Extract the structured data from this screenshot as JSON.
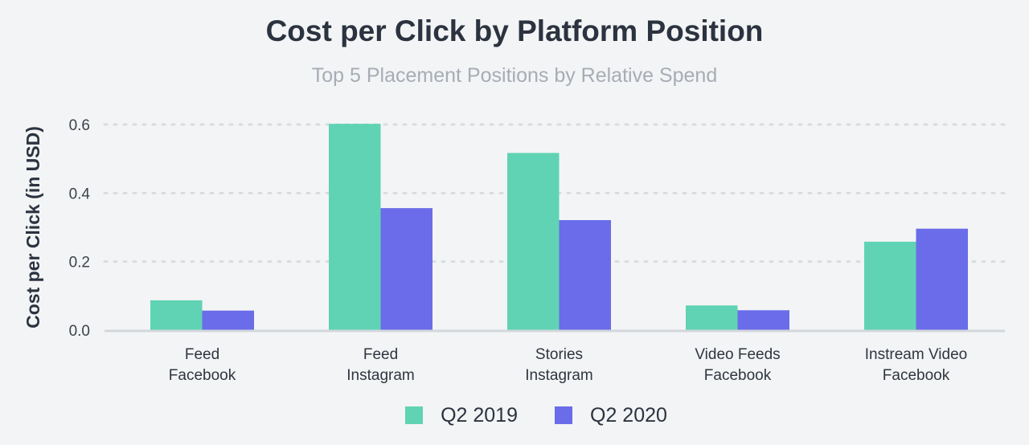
{
  "chart_data": {
    "type": "bar",
    "title": "Cost per Click by Platform Position",
    "subtitle": "Top 5 Placement Positions by Relative Spend",
    "ylabel": "Cost per Click (in USD)",
    "xlabel": "",
    "ylim": [
      0,
      0.6
    ],
    "yticks": [
      "0.0",
      "0.2",
      "0.4",
      "0.6"
    ],
    "ytick_values": [
      0,
      0.2,
      0.4,
      0.6
    ],
    "grid": true,
    "legend_position": "bottom-center",
    "categories": [
      [
        "Feed",
        "Facebook"
      ],
      [
        "Feed",
        "Instagram"
      ],
      [
        "Stories",
        "Instagram"
      ],
      [
        "Video Feeds",
        "Facebook"
      ],
      [
        "Instream Video",
        "Facebook"
      ]
    ],
    "series": [
      {
        "name": "Q2 2019",
        "color": "#5fd3b4",
        "values": [
          0.087,
          0.602,
          0.517,
          0.072,
          0.258
        ]
      },
      {
        "name": "Q2 2020",
        "color": "#6a6ce9",
        "values": [
          0.057,
          0.356,
          0.321,
          0.058,
          0.296
        ]
      }
    ]
  }
}
